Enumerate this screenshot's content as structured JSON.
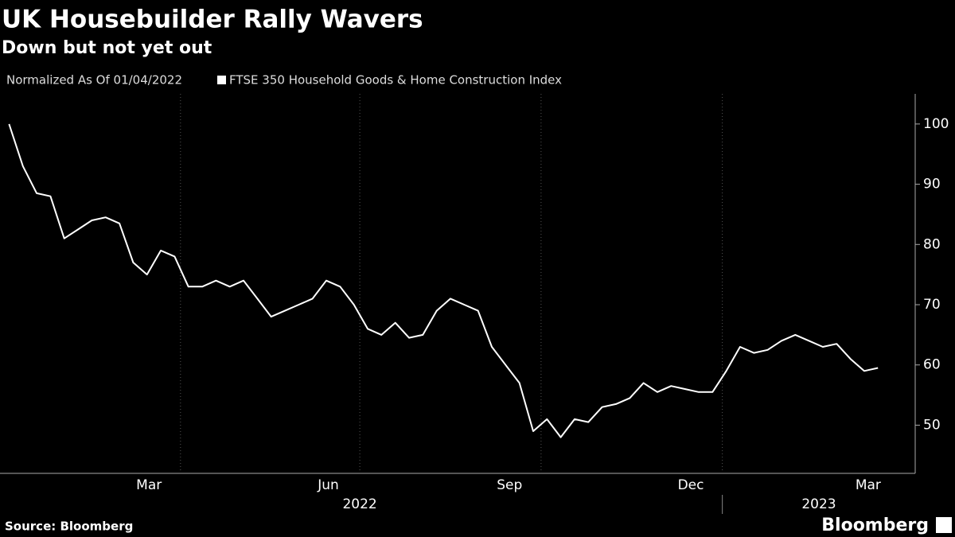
{
  "chart_data": {
    "type": "line",
    "title": "UK Housebuilder Rally Wavers",
    "subtitle": "Down but not yet out",
    "note": "Normalized As Of 01/04/2022",
    "source": "Source: Bloomberg",
    "brand": "Bloomberg",
    "x": [
      "2022-01-04",
      "2022-01-11",
      "2022-01-18",
      "2022-01-25",
      "2022-02-01",
      "2022-02-08",
      "2022-02-15",
      "2022-02-22",
      "2022-03-01",
      "2022-03-08",
      "2022-03-15",
      "2022-03-22",
      "2022-03-29",
      "2022-04-05",
      "2022-04-12",
      "2022-04-19",
      "2022-04-26",
      "2022-05-03",
      "2022-05-10",
      "2022-05-17",
      "2022-05-24",
      "2022-05-31",
      "2022-06-07",
      "2022-06-14",
      "2022-06-21",
      "2022-06-28",
      "2022-07-05",
      "2022-07-12",
      "2022-07-19",
      "2022-07-26",
      "2022-08-02",
      "2022-08-09",
      "2022-08-16",
      "2022-08-23",
      "2022-08-30",
      "2022-09-06",
      "2022-09-13",
      "2022-09-20",
      "2022-09-27",
      "2022-10-04",
      "2022-10-11",
      "2022-10-18",
      "2022-10-25",
      "2022-11-01",
      "2022-11-08",
      "2022-11-15",
      "2022-11-22",
      "2022-11-29",
      "2022-12-06",
      "2022-12-13",
      "2022-12-20",
      "2022-12-27",
      "2023-01-03",
      "2023-01-10",
      "2023-01-17",
      "2023-01-24",
      "2023-01-31",
      "2023-02-07",
      "2023-02-14",
      "2023-02-21",
      "2023-02-28",
      "2023-03-07",
      "2023-03-14",
      "2023-03-21"
    ],
    "series": [
      {
        "name": "FTSE 350 Household Goods & Home Construction Index",
        "color": "#ffffff",
        "values": [
          100,
          93,
          88.5,
          88,
          81,
          82.5,
          84,
          84.5,
          83.5,
          77,
          75,
          79,
          78,
          73,
          73,
          74,
          73,
          74,
          71,
          68,
          69,
          70,
          71,
          74,
          73,
          70,
          66,
          65,
          67,
          64.5,
          65,
          69,
          71,
          70,
          69,
          63,
          60,
          57,
          49,
          51,
          48,
          51,
          50.5,
          53,
          53.5,
          54.5,
          57,
          55.5,
          56.5,
          56,
          55.5,
          55.5,
          59,
          63,
          62,
          62.5,
          64,
          65,
          64,
          63,
          63.5,
          61,
          59,
          59.5
        ]
      }
    ],
    "xlim": [
      "2022-01-01",
      "2023-03-31"
    ],
    "xticks": [
      {
        "value": "2022-03-16",
        "label": "Mar"
      },
      {
        "value": "2022-06-15",
        "label": "Jun"
      },
      {
        "value": "2022-09-15",
        "label": "Sep"
      },
      {
        "value": "2022-12-16",
        "label": "Dec"
      },
      {
        "value": "2023-03-16",
        "label": "Mar"
      }
    ],
    "xgrid": [
      "2022-04-01",
      "2022-07-01",
      "2022-10-01",
      "2023-01-01"
    ],
    "years": [
      {
        "value": "2022-07-01",
        "label": "2022"
      },
      {
        "value": "2023-02-19",
        "label": "2023"
      }
    ],
    "ylim": [
      42,
      105
    ],
    "yticks": [
      50,
      60,
      70,
      80,
      90,
      100
    ],
    "grid": true
  }
}
